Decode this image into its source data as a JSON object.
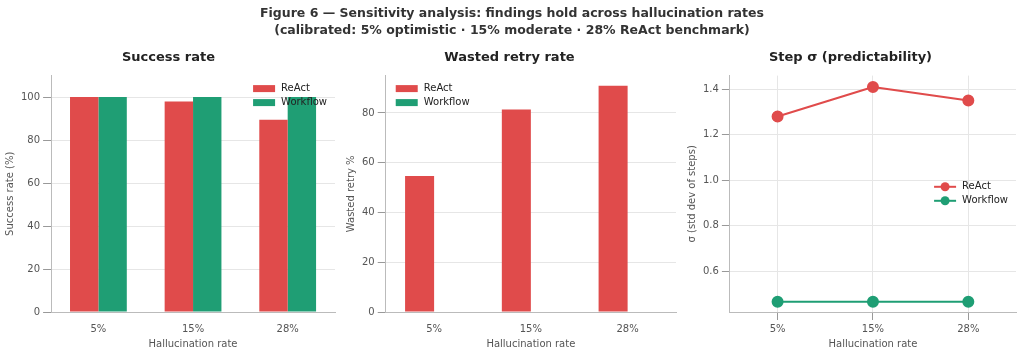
{
  "chart_data": [
    {
      "type": "bar",
      "title": "Success rate",
      "xlabel": "Hallucination rate",
      "ylabel": "Success rate (%)",
      "annotations": [
        "Figure 6 — Sensitivity analysis: findings hold across hallucination rates",
        "(calibrated: 5% optimistic · 15% moderate · 28% ReAct benchmark)"
      ],
      "categories": [
        "5%",
        "15%",
        "28%"
      ],
      "series": [
        {
          "name": "ReAct",
          "color": "#e04b4b",
          "values": [
            100,
            98,
            89.5
          ]
        },
        {
          "name": "Workflow",
          "color": "#1f9e74",
          "values": [
            100,
            100,
            100
          ]
        }
      ],
      "ylim": [
        0,
        110
      ],
      "yticks": [
        0,
        20,
        40,
        60,
        80,
        100
      ],
      "grid": "y",
      "legend": "top right"
    },
    {
      "type": "bar",
      "title": "Wasted retry rate",
      "xlabel": "Hallucination rate",
      "ylabel": "Wasted retry %",
      "categories": [
        "5%",
        "15%",
        "28%"
      ],
      "series": [
        {
          "name": "ReAct",
          "color": "#e04b4b",
          "values": [
            54.7,
            81.4,
            90.9
          ]
        },
        {
          "name": "Workflow",
          "color": "#1f9e74",
          "values": [
            0,
            0,
            0
          ]
        }
      ],
      "ylim": [
        0,
        95
      ],
      "yticks": [
        0,
        20,
        40,
        60,
        80
      ],
      "grid": "y",
      "legend": "top left"
    },
    {
      "type": "line",
      "title": "Step σ (predictability)",
      "xlabel": "Hallucination rate",
      "ylabel": "σ (std dev of steps)",
      "categories": [
        "5%",
        "15%",
        "28%"
      ],
      "series": [
        {
          "name": "ReAct",
          "color": "#e04b4b",
          "values": [
            1.28,
            1.41,
            1.35
          ]
        },
        {
          "name": "Workflow",
          "color": "#1f9e74",
          "values": [
            0.465,
            0.465,
            0.465
          ]
        }
      ],
      "ylim": [
        0.42,
        1.46
      ],
      "yticks": [
        {
          "value": 0.6,
          "label": "0.6"
        },
        {
          "value": 0.8,
          "label": "0.8"
        },
        {
          "value": 1.0,
          "label": "1.0"
        },
        {
          "value": 1.2,
          "label": "1.2"
        },
        {
          "value": 1.4,
          "label": "1.4"
        }
      ],
      "grid": true,
      "legend": "right",
      "marker": "circle",
      "line_style": "solid"
    }
  ]
}
